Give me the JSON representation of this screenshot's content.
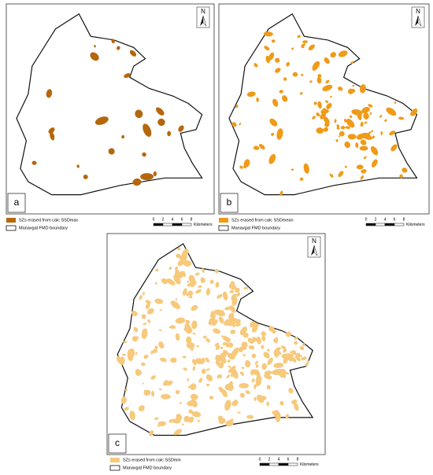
{
  "panels": [
    {
      "label": "a",
      "color": "#b5670c",
      "north": "N",
      "legend": [
        "SZs erased from calc SSDmax",
        "Manavgat FMD boundary"
      ],
      "scale": {
        "ticks": [
          "0",
          "2",
          "4",
          "6",
          "8"
        ],
        "unit": "Kilometers"
      }
    },
    {
      "label": "b",
      "color": "#f09a18",
      "north": "N",
      "legend": [
        "SZs erased from calc SSDmean",
        "Manavgat FMD boundary"
      ],
      "scale": {
        "ticks": [
          "0",
          "2",
          "4",
          "6",
          "8"
        ],
        "unit": "Kilometers"
      }
    },
    {
      "label": "c",
      "color": "#f6c97c",
      "north": "N",
      "legend": [
        "SZs erased from calc SSDmin",
        "Manavgat FMD boundary"
      ],
      "scale": {
        "ticks": [
          "0",
          "2",
          "4",
          "6",
          "8"
        ],
        "unit": "Kilometers"
      }
    }
  ]
}
